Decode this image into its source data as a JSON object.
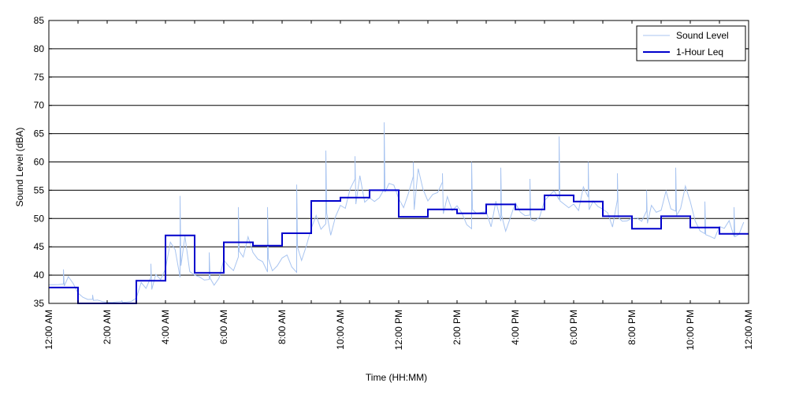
{
  "chart_data": {
    "type": "line",
    "xlabel": "Time (HH:MM)",
    "ylabel": "Sound Level (dBA)",
    "xlim": [
      0,
      24
    ],
    "ylim": [
      35,
      85
    ],
    "yticks": [
      35,
      40,
      45,
      50,
      55,
      60,
      65,
      70,
      75,
      80,
      85
    ],
    "xticks": [
      {
        "hour": 0,
        "label": "12:00 AM"
      },
      {
        "hour": 2,
        "label": "2:00 AM"
      },
      {
        "hour": 4,
        "label": "4:00 AM"
      },
      {
        "hour": 6,
        "label": "6:00 AM"
      },
      {
        "hour": 8,
        "label": "8:00 AM"
      },
      {
        "hour": 10,
        "label": "10:00 AM"
      },
      {
        "hour": 12,
        "label": "12:00 PM"
      },
      {
        "hour": 14,
        "label": "2:00 PM"
      },
      {
        "hour": 16,
        "label": "4:00 PM"
      },
      {
        "hour": 18,
        "label": "6:00 PM"
      },
      {
        "hour": 20,
        "label": "8:00 PM"
      },
      {
        "hour": 22,
        "label": "10:00 PM"
      },
      {
        "hour": 24,
        "label": "12:00 AM"
      }
    ],
    "grid": {
      "horizontal": true,
      "vertical": false
    },
    "legend": {
      "position": "top-right"
    },
    "series": [
      {
        "name": "Sound Level",
        "color": "#a8c4f0",
        "x_unit": "hour",
        "approx_hourly_range": [
          {
            "hour": 0,
            "min": 36.5,
            "max": 41
          },
          {
            "hour": 1,
            "min": 35,
            "max": 36.5
          },
          {
            "hour": 2,
            "min": 35,
            "max": 35.5
          },
          {
            "hour": 3,
            "min": 35,
            "max": 42
          },
          {
            "hour": 4,
            "min": 35,
            "max": 54
          },
          {
            "hour": 5,
            "min": 37,
            "max": 44
          },
          {
            "hour": 6,
            "min": 40,
            "max": 52
          },
          {
            "hour": 7,
            "min": 38,
            "max": 52
          },
          {
            "hour": 8,
            "min": 39,
            "max": 56
          },
          {
            "hour": 9,
            "min": 45,
            "max": 62
          },
          {
            "hour": 10,
            "min": 48,
            "max": 61
          },
          {
            "hour": 11,
            "min": 48,
            "max": 67
          },
          {
            "hour": 12,
            "min": 47,
            "max": 60
          },
          {
            "hour": 13,
            "min": 47,
            "max": 58
          },
          {
            "hour": 14,
            "min": 47,
            "max": 60
          },
          {
            "hour": 15,
            "min": 46,
            "max": 59
          },
          {
            "hour": 16,
            "min": 46,
            "max": 57
          },
          {
            "hour": 17,
            "min": 47,
            "max": 64.5
          },
          {
            "hour": 18,
            "min": 47,
            "max": 60
          },
          {
            "hour": 19,
            "min": 46,
            "max": 58
          },
          {
            "hour": 20,
            "min": 46,
            "max": 55
          },
          {
            "hour": 21,
            "min": 46,
            "max": 59
          },
          {
            "hour": 22,
            "min": 44,
            "max": 53
          },
          {
            "hour": 23,
            "min": 44,
            "max": 52
          }
        ]
      },
      {
        "name": "1-Hour Leq",
        "color": "#0000cc",
        "x_unit": "hour",
        "step_values": [
          {
            "hour": 0,
            "value": 37.8
          },
          {
            "hour": 1,
            "value": 35
          },
          {
            "hour": 2,
            "value": 35
          },
          {
            "hour": 3,
            "value": 39
          },
          {
            "hour": 4,
            "value": 47
          },
          {
            "hour": 5,
            "value": 40.4
          },
          {
            "hour": 6,
            "value": 45.8
          },
          {
            "hour": 7,
            "value": 45.2
          },
          {
            "hour": 8,
            "value": 47.4
          },
          {
            "hour": 9,
            "value": 53.1
          },
          {
            "hour": 10,
            "value": 53.7
          },
          {
            "hour": 11,
            "value": 55
          },
          {
            "hour": 12,
            "value": 50.3
          },
          {
            "hour": 13,
            "value": 51.6
          },
          {
            "hour": 14,
            "value": 50.9
          },
          {
            "hour": 15,
            "value": 52.5
          },
          {
            "hour": 16,
            "value": 51.6
          },
          {
            "hour": 17,
            "value": 54.1
          },
          {
            "hour": 18,
            "value": 53.0
          },
          {
            "hour": 19,
            "value": 50.4
          },
          {
            "hour": 20,
            "value": 48.2
          },
          {
            "hour": 21,
            "value": 50.4
          },
          {
            "hour": 22,
            "value": 48.4
          },
          {
            "hour": 23,
            "value": 47.3
          }
        ]
      }
    ]
  }
}
